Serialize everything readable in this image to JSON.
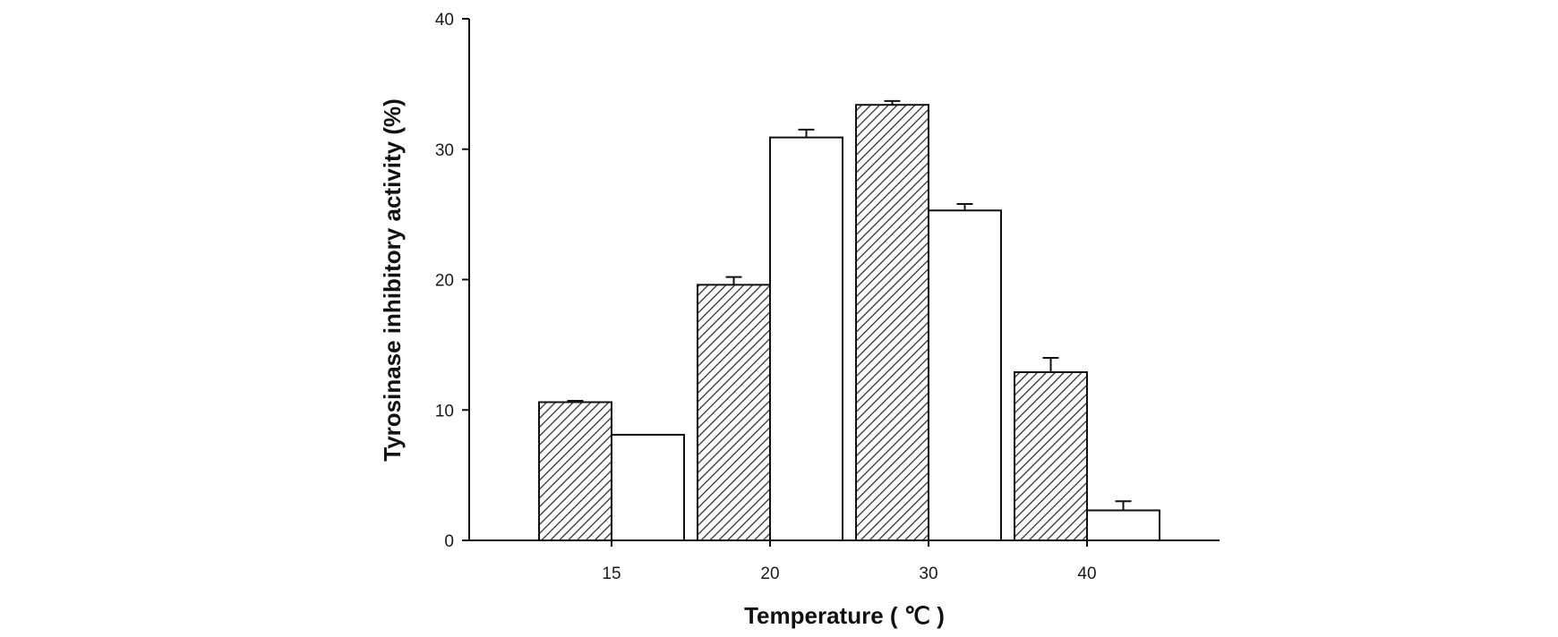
{
  "chart_data": {
    "type": "bar",
    "title": "",
    "xlabel": "Temperature ( ℃ )",
    "ylabel": "Tyrosinase inhibitory activity (%)",
    "categories": [
      "15",
      "20",
      "30",
      "40"
    ],
    "ylim": [
      0,
      40
    ],
    "yticks": [
      "0",
      "10",
      "20",
      "30",
      "40"
    ],
    "grid": false,
    "legend": "none",
    "series": [
      {
        "pattern": "hatched",
        "values": [
          10.6,
          19.6,
          33.4,
          12.9
        ],
        "errors": [
          0.1,
          0.6,
          0.3,
          1.1
        ]
      },
      {
        "pattern": "open",
        "values": [
          8.1,
          30.9,
          25.3,
          2.3
        ],
        "errors": [
          0,
          0.6,
          0.5,
          0.7
        ]
      }
    ],
    "colors": {
      "bar_stroke": "#111111",
      "open_fill": "#ffffff",
      "hatch": "#333333"
    }
  }
}
